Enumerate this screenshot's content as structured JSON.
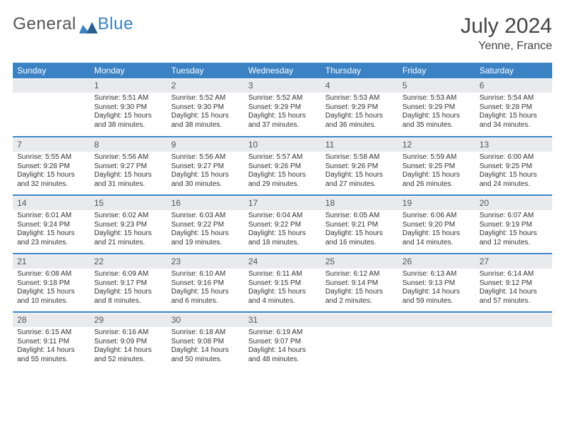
{
  "brand": {
    "part1": "General",
    "part2": "Blue"
  },
  "title": "July 2024",
  "location": "Yenne, France",
  "colors": {
    "header_bg": "#3b82c4",
    "header_fg": "#ffffff",
    "daynum_bg": "#e9eaec",
    "row_divider": "#3b82c4",
    "text": "#333333",
    "background": "#ffffff"
  },
  "day_headers": [
    "Sunday",
    "Monday",
    "Tuesday",
    "Wednesday",
    "Thursday",
    "Friday",
    "Saturday"
  ],
  "weeks": [
    [
      {
        "n": "",
        "sr": "",
        "ss": "",
        "dl": ""
      },
      {
        "n": "1",
        "sr": "Sunrise: 5:51 AM",
        "ss": "Sunset: 9:30 PM",
        "dl": "Daylight: 15 hours and 38 minutes."
      },
      {
        "n": "2",
        "sr": "Sunrise: 5:52 AM",
        "ss": "Sunset: 9:30 PM",
        "dl": "Daylight: 15 hours and 38 minutes."
      },
      {
        "n": "3",
        "sr": "Sunrise: 5:52 AM",
        "ss": "Sunset: 9:29 PM",
        "dl": "Daylight: 15 hours and 37 minutes."
      },
      {
        "n": "4",
        "sr": "Sunrise: 5:53 AM",
        "ss": "Sunset: 9:29 PM",
        "dl": "Daylight: 15 hours and 36 minutes."
      },
      {
        "n": "5",
        "sr": "Sunrise: 5:53 AM",
        "ss": "Sunset: 9:29 PM",
        "dl": "Daylight: 15 hours and 35 minutes."
      },
      {
        "n": "6",
        "sr": "Sunrise: 5:54 AM",
        "ss": "Sunset: 9:28 PM",
        "dl": "Daylight: 15 hours and 34 minutes."
      }
    ],
    [
      {
        "n": "7",
        "sr": "Sunrise: 5:55 AM",
        "ss": "Sunset: 9:28 PM",
        "dl": "Daylight: 15 hours and 32 minutes."
      },
      {
        "n": "8",
        "sr": "Sunrise: 5:56 AM",
        "ss": "Sunset: 9:27 PM",
        "dl": "Daylight: 15 hours and 31 minutes."
      },
      {
        "n": "9",
        "sr": "Sunrise: 5:56 AM",
        "ss": "Sunset: 9:27 PM",
        "dl": "Daylight: 15 hours and 30 minutes."
      },
      {
        "n": "10",
        "sr": "Sunrise: 5:57 AM",
        "ss": "Sunset: 9:26 PM",
        "dl": "Daylight: 15 hours and 29 minutes."
      },
      {
        "n": "11",
        "sr": "Sunrise: 5:58 AM",
        "ss": "Sunset: 9:26 PM",
        "dl": "Daylight: 15 hours and 27 minutes."
      },
      {
        "n": "12",
        "sr": "Sunrise: 5:59 AM",
        "ss": "Sunset: 9:25 PM",
        "dl": "Daylight: 15 hours and 26 minutes."
      },
      {
        "n": "13",
        "sr": "Sunrise: 6:00 AM",
        "ss": "Sunset: 9:25 PM",
        "dl": "Daylight: 15 hours and 24 minutes."
      }
    ],
    [
      {
        "n": "14",
        "sr": "Sunrise: 6:01 AM",
        "ss": "Sunset: 9:24 PM",
        "dl": "Daylight: 15 hours and 23 minutes."
      },
      {
        "n": "15",
        "sr": "Sunrise: 6:02 AM",
        "ss": "Sunset: 9:23 PM",
        "dl": "Daylight: 15 hours and 21 minutes."
      },
      {
        "n": "16",
        "sr": "Sunrise: 6:03 AM",
        "ss": "Sunset: 9:22 PM",
        "dl": "Daylight: 15 hours and 19 minutes."
      },
      {
        "n": "17",
        "sr": "Sunrise: 6:04 AM",
        "ss": "Sunset: 9:22 PM",
        "dl": "Daylight: 15 hours and 18 minutes."
      },
      {
        "n": "18",
        "sr": "Sunrise: 6:05 AM",
        "ss": "Sunset: 9:21 PM",
        "dl": "Daylight: 15 hours and 16 minutes."
      },
      {
        "n": "19",
        "sr": "Sunrise: 6:06 AM",
        "ss": "Sunset: 9:20 PM",
        "dl": "Daylight: 15 hours and 14 minutes."
      },
      {
        "n": "20",
        "sr": "Sunrise: 6:07 AM",
        "ss": "Sunset: 9:19 PM",
        "dl": "Daylight: 15 hours and 12 minutes."
      }
    ],
    [
      {
        "n": "21",
        "sr": "Sunrise: 6:08 AM",
        "ss": "Sunset: 9:18 PM",
        "dl": "Daylight: 15 hours and 10 minutes."
      },
      {
        "n": "22",
        "sr": "Sunrise: 6:09 AM",
        "ss": "Sunset: 9:17 PM",
        "dl": "Daylight: 15 hours and 8 minutes."
      },
      {
        "n": "23",
        "sr": "Sunrise: 6:10 AM",
        "ss": "Sunset: 9:16 PM",
        "dl": "Daylight: 15 hours and 6 minutes."
      },
      {
        "n": "24",
        "sr": "Sunrise: 6:11 AM",
        "ss": "Sunset: 9:15 PM",
        "dl": "Daylight: 15 hours and 4 minutes."
      },
      {
        "n": "25",
        "sr": "Sunrise: 6:12 AM",
        "ss": "Sunset: 9:14 PM",
        "dl": "Daylight: 15 hours and 2 minutes."
      },
      {
        "n": "26",
        "sr": "Sunrise: 6:13 AM",
        "ss": "Sunset: 9:13 PM",
        "dl": "Daylight: 14 hours and 59 minutes."
      },
      {
        "n": "27",
        "sr": "Sunrise: 6:14 AM",
        "ss": "Sunset: 9:12 PM",
        "dl": "Daylight: 14 hours and 57 minutes."
      }
    ],
    [
      {
        "n": "28",
        "sr": "Sunrise: 6:15 AM",
        "ss": "Sunset: 9:11 PM",
        "dl": "Daylight: 14 hours and 55 minutes."
      },
      {
        "n": "29",
        "sr": "Sunrise: 6:16 AM",
        "ss": "Sunset: 9:09 PM",
        "dl": "Daylight: 14 hours and 52 minutes."
      },
      {
        "n": "30",
        "sr": "Sunrise: 6:18 AM",
        "ss": "Sunset: 9:08 PM",
        "dl": "Daylight: 14 hours and 50 minutes."
      },
      {
        "n": "31",
        "sr": "Sunrise: 6:19 AM",
        "ss": "Sunset: 9:07 PM",
        "dl": "Daylight: 14 hours and 48 minutes."
      },
      {
        "n": "",
        "sr": "",
        "ss": "",
        "dl": ""
      },
      {
        "n": "",
        "sr": "",
        "ss": "",
        "dl": ""
      },
      {
        "n": "",
        "sr": "",
        "ss": "",
        "dl": ""
      }
    ]
  ]
}
